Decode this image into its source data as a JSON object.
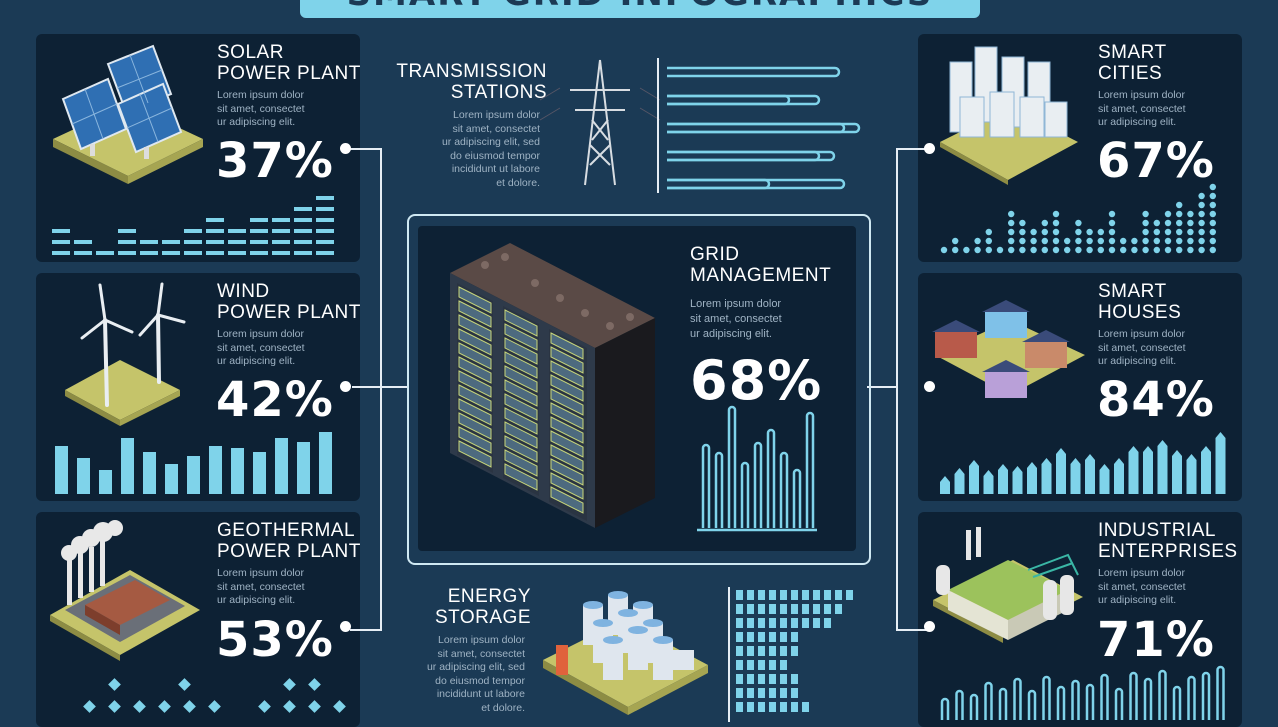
{
  "header": {
    "title": "SMART GRID INFOGRAPHICS"
  },
  "lorem_short": "Lorem ipsum dolor sit amet, consectet ur adipiscing elit.",
  "panels": {
    "solar": {
      "title_1": "SOLAR",
      "title_2": "POWER PLANT",
      "text": [
        "Lorem ipsum dolor",
        "sit amet, consectet",
        "ur adipiscing elit."
      ],
      "percent": "37%"
    },
    "wind": {
      "title_1": "WIND",
      "title_2": "POWER PLANT",
      "text": [
        "Lorem ipsum dolor",
        "sit amet, consectet",
        "ur adipiscing elit."
      ],
      "percent": "42%"
    },
    "geothermal": {
      "title_1": "GEOTHERMAL",
      "title_2": "POWER PLANT",
      "text": [
        "Lorem ipsum dolor",
        "sit amet, consectet",
        "ur adipiscing elit."
      ],
      "percent": "53%"
    },
    "cities": {
      "title_1": "SMART",
      "title_2": "CITIES",
      "text": [
        "Lorem ipsum dolor",
        "sit amet, consectet",
        "ur adipiscing elit."
      ],
      "percent": "67%"
    },
    "houses": {
      "title_1": "SMART",
      "title_2": "HOUSES",
      "text": [
        "Lorem ipsum dolor",
        "sit amet, consectet",
        "ur adipiscing elit."
      ],
      "percent": "84%"
    },
    "industrial": {
      "title_1": "INDUSTRIAL",
      "title_2": "ENTERPRISES",
      "text": [
        "Lorem ipsum dolor",
        "sit amet, consectet",
        "ur adipiscing elit."
      ],
      "percent": "71%"
    }
  },
  "transmission": {
    "title_1": "TRANSMISSION",
    "title_2": "STATIONS",
    "text": [
      "Lorem ipsum dolor",
      "sit amet, consectet",
      "ur adipiscing elit, sed",
      "do eiusmod tempor",
      "incididunt ut labore",
      "et dolore."
    ]
  },
  "storage": {
    "title_1": "ENERGY",
    "title_2": "STORAGE",
    "text": [
      "Lorem ipsum dolor",
      "sit amet, consectet",
      "ur adipiscing elit, sed",
      "do eiusmod tempor",
      "incididunt ut labore",
      "et dolore."
    ]
  },
  "grid": {
    "title_1": "GRID",
    "title_2": "MANAGEMENT",
    "text": [
      "Lorem ipsum dolor",
      "sit amet, consectet",
      "ur adipiscing elit."
    ],
    "percent": "68%"
  },
  "colors": {
    "background": "#1b3a55",
    "panel": "#0d2134",
    "accent": "#7fd3ea",
    "text_muted": "#9fb3c4"
  }
}
